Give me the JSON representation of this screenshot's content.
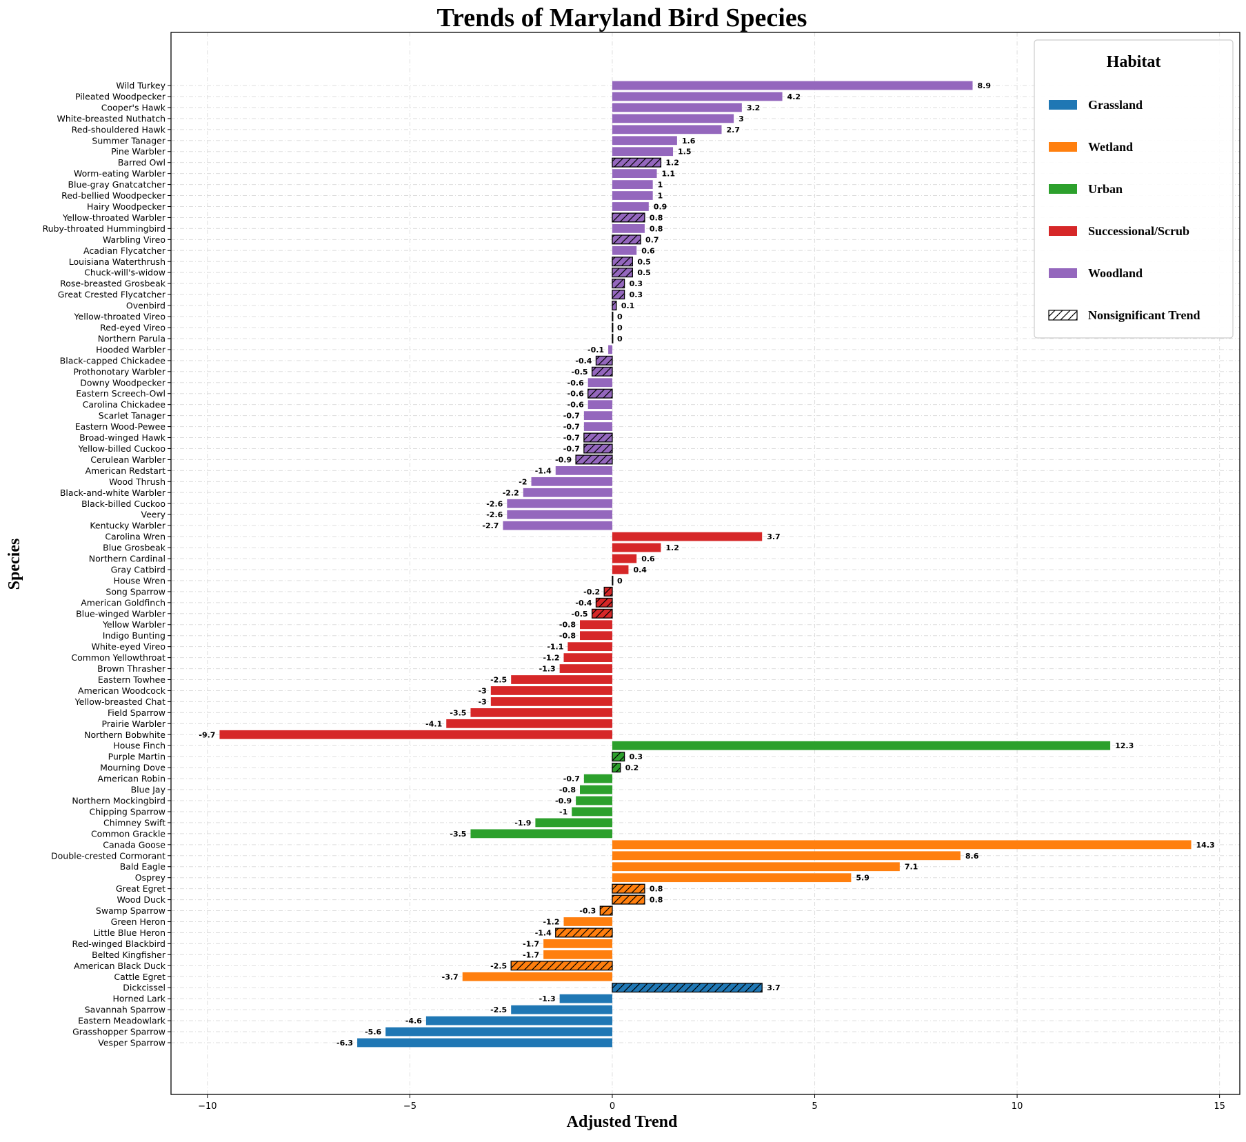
{
  "chart_data": {
    "type": "bar",
    "orientation": "horizontal",
    "title": "Trends of Maryland Bird Species",
    "xlabel": "Adjusted Trend",
    "ylabel": "Species",
    "xlim": [
      -10.9,
      15.5
    ],
    "xticks": [
      -10,
      -5,
      0,
      5,
      10,
      15
    ],
    "xtick_labels": [
      "−10",
      "−5",
      "0",
      "5",
      "10",
      "15"
    ],
    "grid": true,
    "legend": {
      "title": "Habitat",
      "placement": "top-right",
      "entries": [
        {
          "label": "Grassland",
          "color": "#1f77b4",
          "hatch": false
        },
        {
          "label": "Wetland",
          "color": "#ff7f0e",
          "hatch": false
        },
        {
          "label": "Urban",
          "color": "#2ca02c",
          "hatch": false
        },
        {
          "label": "Successional/Scrub",
          "color": "#d62728",
          "hatch": false
        },
        {
          "label": "Woodland",
          "color": "#9467bd",
          "hatch": false
        },
        {
          "label": "Nonsignificant Trend",
          "color": "#ffffff",
          "hatch": true
        }
      ]
    },
    "habitat_colors": {
      "Grassland": "#1f77b4",
      "Wetland": "#ff7f0e",
      "Urban": "#2ca02c",
      "Successional/Scrub": "#d62728",
      "Woodland": "#9467bd"
    },
    "bars": [
      {
        "species": "Wild Turkey",
        "habitat": "Woodland",
        "value": 8.9,
        "label": "8.9",
        "nonsig": false
      },
      {
        "species": "Pileated Woodpecker",
        "habitat": "Woodland",
        "value": 4.2,
        "label": "4.2",
        "nonsig": false
      },
      {
        "species": "Cooper's Hawk",
        "habitat": "Woodland",
        "value": 3.2,
        "label": "3.2",
        "nonsig": false
      },
      {
        "species": "White-breasted Nuthatch",
        "habitat": "Woodland",
        "value": 3,
        "label": "3",
        "nonsig": false
      },
      {
        "species": "Red-shouldered Hawk",
        "habitat": "Woodland",
        "value": 2.7,
        "label": "2.7",
        "nonsig": false
      },
      {
        "species": "Summer Tanager",
        "habitat": "Woodland",
        "value": 1.6,
        "label": "1.6",
        "nonsig": false
      },
      {
        "species": "Pine Warbler",
        "habitat": "Woodland",
        "value": 1.5,
        "label": "1.5",
        "nonsig": false
      },
      {
        "species": "Barred Owl",
        "habitat": "Woodland",
        "value": 1.2,
        "label": "1.2",
        "nonsig": true
      },
      {
        "species": "Worm-eating Warbler",
        "habitat": "Woodland",
        "value": 1.1,
        "label": "1.1",
        "nonsig": false
      },
      {
        "species": "Blue-gray Gnatcatcher",
        "habitat": "Woodland",
        "value": 1,
        "label": "1",
        "nonsig": false
      },
      {
        "species": "Red-bellied Woodpecker",
        "habitat": "Woodland",
        "value": 1,
        "label": "1",
        "nonsig": false
      },
      {
        "species": "Hairy Woodpecker",
        "habitat": "Woodland",
        "value": 0.9,
        "label": "0.9",
        "nonsig": false
      },
      {
        "species": "Yellow-throated Warbler",
        "habitat": "Woodland",
        "value": 0.8,
        "label": "0.8",
        "nonsig": true
      },
      {
        "species": "Ruby-throated Hummingbird",
        "habitat": "Woodland",
        "value": 0.8,
        "label": "0.8",
        "nonsig": false
      },
      {
        "species": "Warbling Vireo",
        "habitat": "Woodland",
        "value": 0.7,
        "label": "0.7",
        "nonsig": true
      },
      {
        "species": "Acadian Flycatcher",
        "habitat": "Woodland",
        "value": 0.6,
        "label": "0.6",
        "nonsig": false
      },
      {
        "species": "Louisiana Waterthrush",
        "habitat": "Woodland",
        "value": 0.5,
        "label": "0.5",
        "nonsig": true
      },
      {
        "species": "Chuck-will's-widow",
        "habitat": "Woodland",
        "value": 0.5,
        "label": "0.5",
        "nonsig": true
      },
      {
        "species": "Rose-breasted Grosbeak",
        "habitat": "Woodland",
        "value": 0.3,
        "label": "0.3",
        "nonsig": true
      },
      {
        "species": "Great Crested Flycatcher",
        "habitat": "Woodland",
        "value": 0.3,
        "label": "0.3",
        "nonsig": true
      },
      {
        "species": "Ovenbird",
        "habitat": "Woodland",
        "value": 0.1,
        "label": "0.1",
        "nonsig": true
      },
      {
        "species": "Yellow-throated Vireo",
        "habitat": "Woodland",
        "value": 0,
        "label": "0",
        "nonsig": true
      },
      {
        "species": "Red-eyed Vireo",
        "habitat": "Woodland",
        "value": 0,
        "label": "0",
        "nonsig": true
      },
      {
        "species": "Northern Parula",
        "habitat": "Woodland",
        "value": 0,
        "label": "0",
        "nonsig": true
      },
      {
        "species": "Hooded Warbler",
        "habitat": "Woodland",
        "value": -0.1,
        "label": "-0.1",
        "nonsig": false
      },
      {
        "species": "Black-capped Chickadee",
        "habitat": "Woodland",
        "value": -0.4,
        "label": "-0.4",
        "nonsig": true
      },
      {
        "species": "Prothonotary Warbler",
        "habitat": "Woodland",
        "value": -0.5,
        "label": "-0.5",
        "nonsig": true
      },
      {
        "species": "Downy Woodpecker",
        "habitat": "Woodland",
        "value": -0.6,
        "label": "-0.6",
        "nonsig": false
      },
      {
        "species": "Eastern Screech-Owl",
        "habitat": "Woodland",
        "value": -0.6,
        "label": "-0.6",
        "nonsig": true
      },
      {
        "species": "Carolina Chickadee",
        "habitat": "Woodland",
        "value": -0.6,
        "label": "-0.6",
        "nonsig": false
      },
      {
        "species": "Scarlet Tanager",
        "habitat": "Woodland",
        "value": -0.7,
        "label": "-0.7",
        "nonsig": false
      },
      {
        "species": "Eastern Wood-Pewee",
        "habitat": "Woodland",
        "value": -0.7,
        "label": "-0.7",
        "nonsig": false
      },
      {
        "species": "Broad-winged Hawk",
        "habitat": "Woodland",
        "value": -0.7,
        "label": "-0.7",
        "nonsig": true
      },
      {
        "species": "Yellow-billed Cuckoo",
        "habitat": "Woodland",
        "value": -0.7,
        "label": "-0.7",
        "nonsig": true
      },
      {
        "species": "Cerulean Warbler",
        "habitat": "Woodland",
        "value": -0.9,
        "label": "-0.9",
        "nonsig": true
      },
      {
        "species": "American Redstart",
        "habitat": "Woodland",
        "value": -1.4,
        "label": "-1.4",
        "nonsig": false
      },
      {
        "species": "Wood Thrush",
        "habitat": "Woodland",
        "value": -2,
        "label": "-2",
        "nonsig": false
      },
      {
        "species": "Black-and-white Warbler",
        "habitat": "Woodland",
        "value": -2.2,
        "label": "-2.2",
        "nonsig": false
      },
      {
        "species": "Black-billed Cuckoo",
        "habitat": "Woodland",
        "value": -2.6,
        "label": "-2.6",
        "nonsig": false
      },
      {
        "species": "Veery",
        "habitat": "Woodland",
        "value": -2.6,
        "label": "-2.6",
        "nonsig": false
      },
      {
        "species": "Kentucky Warbler",
        "habitat": "Woodland",
        "value": -2.7,
        "label": "-2.7",
        "nonsig": false
      },
      {
        "species": "Carolina Wren",
        "habitat": "Successional/Scrub",
        "value": 3.7,
        "label": "3.7",
        "nonsig": false
      },
      {
        "species": "Blue Grosbeak",
        "habitat": "Successional/Scrub",
        "value": 1.2,
        "label": "1.2",
        "nonsig": false
      },
      {
        "species": "Northern Cardinal",
        "habitat": "Successional/Scrub",
        "value": 0.6,
        "label": "0.6",
        "nonsig": false
      },
      {
        "species": "Gray Catbird",
        "habitat": "Successional/Scrub",
        "value": 0.4,
        "label": "0.4",
        "nonsig": false
      },
      {
        "species": "House Wren",
        "habitat": "Successional/Scrub",
        "value": 0,
        "label": "0",
        "nonsig": true
      },
      {
        "species": "Song Sparrow",
        "habitat": "Successional/Scrub",
        "value": -0.2,
        "label": "-0.2",
        "nonsig": true
      },
      {
        "species": "American Goldfinch",
        "habitat": "Successional/Scrub",
        "value": -0.4,
        "label": "-0.4",
        "nonsig": true
      },
      {
        "species": "Blue-winged Warbler",
        "habitat": "Successional/Scrub",
        "value": -0.5,
        "label": "-0.5",
        "nonsig": true
      },
      {
        "species": "Yellow Warbler",
        "habitat": "Successional/Scrub",
        "value": -0.8,
        "label": "-0.8",
        "nonsig": false
      },
      {
        "species": "Indigo Bunting",
        "habitat": "Successional/Scrub",
        "value": -0.8,
        "label": "-0.8",
        "nonsig": false
      },
      {
        "species": "White-eyed Vireo",
        "habitat": "Successional/Scrub",
        "value": -1.1,
        "label": "-1.1",
        "nonsig": false
      },
      {
        "species": "Common Yellowthroat",
        "habitat": "Successional/Scrub",
        "value": -1.2,
        "label": "-1.2",
        "nonsig": false
      },
      {
        "species": "Brown Thrasher",
        "habitat": "Successional/Scrub",
        "value": -1.3,
        "label": "-1.3",
        "nonsig": false
      },
      {
        "species": "Eastern Towhee",
        "habitat": "Successional/Scrub",
        "value": -2.5,
        "label": "-2.5",
        "nonsig": false
      },
      {
        "species": "American Woodcock",
        "habitat": "Successional/Scrub",
        "value": -3,
        "label": "-3",
        "nonsig": false
      },
      {
        "species": "Yellow-breasted Chat",
        "habitat": "Successional/Scrub",
        "value": -3,
        "label": "-3",
        "nonsig": false
      },
      {
        "species": "Field Sparrow",
        "habitat": "Successional/Scrub",
        "value": -3.5,
        "label": "-3.5",
        "nonsig": false
      },
      {
        "species": "Prairie Warbler",
        "habitat": "Successional/Scrub",
        "value": -4.1,
        "label": "-4.1",
        "nonsig": false
      },
      {
        "species": "Northern Bobwhite",
        "habitat": "Successional/Scrub",
        "value": -9.7,
        "label": "-9.7",
        "nonsig": false
      },
      {
        "species": "House Finch",
        "habitat": "Urban",
        "value": 12.3,
        "label": "12.3",
        "nonsig": false
      },
      {
        "species": "Purple Martin",
        "habitat": "Urban",
        "value": 0.3,
        "label": "0.3",
        "nonsig": true
      },
      {
        "species": "Mourning Dove",
        "habitat": "Urban",
        "value": 0.2,
        "label": "0.2",
        "nonsig": true
      },
      {
        "species": "American Robin",
        "habitat": "Urban",
        "value": -0.7,
        "label": "-0.7",
        "nonsig": false
      },
      {
        "species": "Blue Jay",
        "habitat": "Urban",
        "value": -0.8,
        "label": "-0.8",
        "nonsig": false
      },
      {
        "species": "Northern Mockingbird",
        "habitat": "Urban",
        "value": -0.9,
        "label": "-0.9",
        "nonsig": false
      },
      {
        "species": "Chipping Sparrow",
        "habitat": "Urban",
        "value": -1,
        "label": "-1",
        "nonsig": false
      },
      {
        "species": "Chimney Swift",
        "habitat": "Urban",
        "value": -1.9,
        "label": "-1.9",
        "nonsig": false
      },
      {
        "species": "Common Grackle",
        "habitat": "Urban",
        "value": -3.5,
        "label": "-3.5",
        "nonsig": false
      },
      {
        "species": "Canada Goose",
        "habitat": "Wetland",
        "value": 14.3,
        "label": "14.3",
        "nonsig": false
      },
      {
        "species": "Double-crested Cormorant",
        "habitat": "Wetland",
        "value": 8.6,
        "label": "8.6",
        "nonsig": false
      },
      {
        "species": "Bald Eagle",
        "habitat": "Wetland",
        "value": 7.1,
        "label": "7.1",
        "nonsig": false
      },
      {
        "species": "Osprey",
        "habitat": "Wetland",
        "value": 5.9,
        "label": "5.9",
        "nonsig": false
      },
      {
        "species": "Great Egret",
        "habitat": "Wetland",
        "value": 0.8,
        "label": "0.8",
        "nonsig": true
      },
      {
        "species": "Wood Duck",
        "habitat": "Wetland",
        "value": 0.8,
        "label": "0.8",
        "nonsig": true
      },
      {
        "species": "Swamp Sparrow",
        "habitat": "Wetland",
        "value": -0.3,
        "label": "-0.3",
        "nonsig": true
      },
      {
        "species": "Green Heron",
        "habitat": "Wetland",
        "value": -1.2,
        "label": "-1.2",
        "nonsig": false
      },
      {
        "species": "Little Blue Heron",
        "habitat": "Wetland",
        "value": -1.4,
        "label": "-1.4",
        "nonsig": true
      },
      {
        "species": "Red-winged Blackbird",
        "habitat": "Wetland",
        "value": -1.7,
        "label": "-1.7",
        "nonsig": false
      },
      {
        "species": "Belted Kingfisher",
        "habitat": "Wetland",
        "value": -1.7,
        "label": "-1.7",
        "nonsig": false
      },
      {
        "species": "American Black Duck",
        "habitat": "Wetland",
        "value": -2.5,
        "label": "-2.5",
        "nonsig": true
      },
      {
        "species": "Cattle Egret",
        "habitat": "Wetland",
        "value": -3.7,
        "label": "-3.7",
        "nonsig": false
      },
      {
        "species": "Dickcissel",
        "habitat": "Grassland",
        "value": 3.7,
        "label": "3.7",
        "nonsig": true
      },
      {
        "species": "Horned Lark",
        "habitat": "Grassland",
        "value": -1.3,
        "label": "-1.3",
        "nonsig": false
      },
      {
        "species": "Savannah Sparrow",
        "habitat": "Grassland",
        "value": -2.5,
        "label": "-2.5",
        "nonsig": false
      },
      {
        "species": "Eastern Meadowlark",
        "habitat": "Grassland",
        "value": -4.6,
        "label": "-4.6",
        "nonsig": false
      },
      {
        "species": "Grasshopper Sparrow",
        "habitat": "Grassland",
        "value": -5.6,
        "label": "-5.6",
        "nonsig": false
      },
      {
        "species": "Vesper Sparrow",
        "habitat": "Grassland",
        "value": -6.3,
        "label": "-6.3",
        "nonsig": false
      }
    ]
  }
}
